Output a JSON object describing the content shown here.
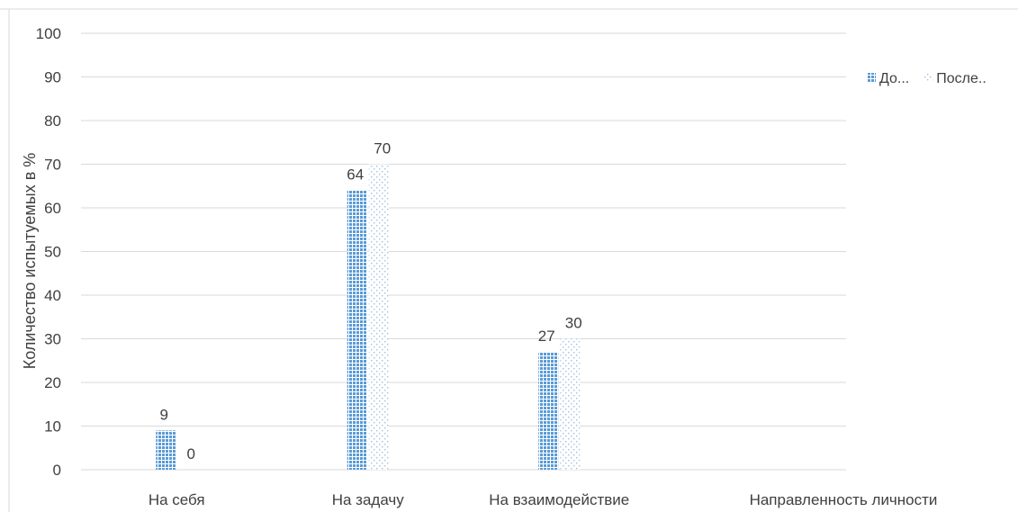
{
  "chart_data": {
    "type": "bar",
    "categories": [
      "На себя",
      "На задачу",
      "На взаимодействие"
    ],
    "xlabel": "Направленность личности",
    "ylabel": "Количество испытуемых в %",
    "ylim": [
      0,
      100
    ],
    "yticks": [
      0,
      10,
      20,
      30,
      40,
      50,
      60,
      70,
      80,
      90,
      100
    ],
    "grid": true,
    "legend": "right",
    "series": [
      {
        "name": "До...",
        "values": [
          9,
          64,
          27
        ],
        "color": "#5b9bd5",
        "pattern": "dense-dots"
      },
      {
        "name": "После..",
        "values": [
          0,
          70,
          30
        ],
        "color": "#9dc3e6",
        "pattern": "sparse-dots"
      }
    ]
  }
}
